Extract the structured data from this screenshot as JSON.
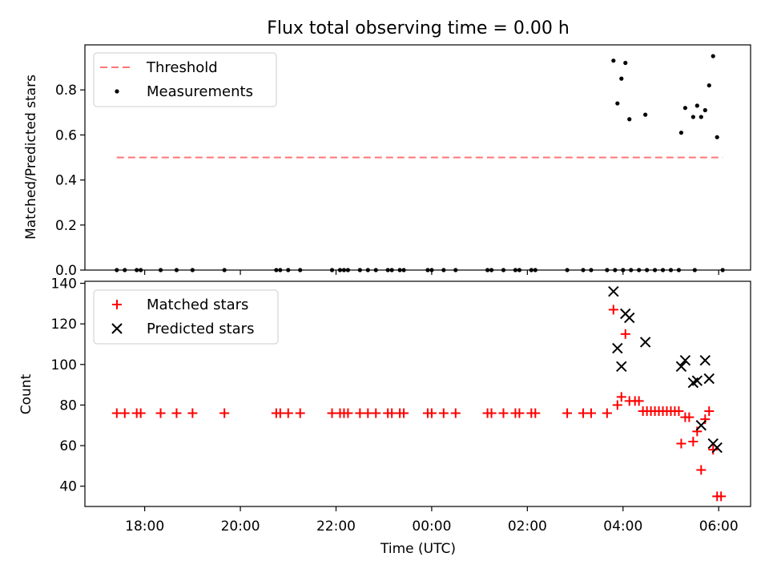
{
  "title": "Flux total observing time = 0.00 h",
  "chart_data": [
    {
      "type": "scatter",
      "ylabel": "Matched/Predicted stars",
      "ylim": [
        0,
        1.0
      ],
      "yticks": [
        "0.0",
        "0.2",
        "0.4",
        "0.6",
        "0.8"
      ],
      "ytick_values": [
        0,
        0.2,
        0.4,
        0.6,
        0.8
      ],
      "grid": false,
      "legend": {
        "placement": "top-left",
        "entries": [
          "Threshold",
          "Measurements"
        ]
      },
      "threshold": {
        "name": "Threshold",
        "x_start": "17:25",
        "x_end": "06:05",
        "y": 0.5,
        "color": "#ff7575",
        "style": "dashed"
      },
      "measurements": {
        "name": "Measurements",
        "color": "#000000",
        "points": [
          [
            "17:25",
            0
          ],
          [
            "17:35",
            0
          ],
          [
            "17:50",
            0
          ],
          [
            "17:55",
            0
          ],
          [
            "18:20",
            0
          ],
          [
            "18:40",
            0
          ],
          [
            "19:00",
            0
          ],
          [
            "19:40",
            0
          ],
          [
            "20:45",
            0
          ],
          [
            "20:50",
            0
          ],
          [
            "21:00",
            0
          ],
          [
            "21:15",
            0
          ],
          [
            "21:55",
            0
          ],
          [
            "22:05",
            0
          ],
          [
            "22:10",
            0
          ],
          [
            "22:15",
            0
          ],
          [
            "22:30",
            0
          ],
          [
            "22:40",
            0
          ],
          [
            "22:50",
            0
          ],
          [
            "23:05",
            0
          ],
          [
            "23:10",
            0
          ],
          [
            "23:20",
            0
          ],
          [
            "23:25",
            0
          ],
          [
            "23:55",
            0
          ],
          [
            "00:00",
            0
          ],
          [
            "00:15",
            0
          ],
          [
            "00:30",
            0
          ],
          [
            "01:10",
            0
          ],
          [
            "01:15",
            0
          ],
          [
            "01:30",
            0
          ],
          [
            "01:45",
            0
          ],
          [
            "01:50",
            0
          ],
          [
            "02:05",
            0
          ],
          [
            "02:10",
            0
          ],
          [
            "02:50",
            0
          ],
          [
            "03:10",
            0
          ],
          [
            "03:20",
            0
          ],
          [
            "03:40",
            0
          ],
          [
            "03:50",
            0
          ],
          [
            "04:00",
            0
          ],
          [
            "04:10",
            0
          ],
          [
            "04:20",
            0
          ],
          [
            "04:30",
            0
          ],
          [
            "04:40",
            0
          ],
          [
            "04:50",
            0
          ],
          [
            "05:00",
            0
          ],
          [
            "05:10",
            0
          ],
          [
            "05:30",
            0
          ],
          [
            "06:05",
            0
          ],
          [
            "03:48",
            0.93
          ],
          [
            "03:53",
            0.74
          ],
          [
            "03:58",
            0.85
          ],
          [
            "04:03",
            0.92
          ],
          [
            "04:08",
            0.67
          ],
          [
            "04:28",
            0.69
          ],
          [
            "05:13",
            0.61
          ],
          [
            "05:18",
            0.72
          ],
          [
            "05:28",
            0.68
          ],
          [
            "05:33",
            0.73
          ],
          [
            "05:38",
            0.68
          ],
          [
            "05:43",
            0.71
          ],
          [
            "05:48",
            0.82
          ],
          [
            "05:53",
            0.95
          ],
          [
            "05:58",
            0.59
          ]
        ]
      }
    },
    {
      "type": "scatter",
      "xlabel": "Time (UTC)",
      "ylabel": "Count",
      "ylim": [
        30,
        141
      ],
      "yticks": [
        "40",
        "60",
        "80",
        "100",
        "120",
        "140"
      ],
      "ytick_values": [
        40,
        60,
        80,
        100,
        120,
        140
      ],
      "xticks": [
        "18:00",
        "20:00",
        "22:00",
        "00:00",
        "02:00",
        "04:00",
        "06:00"
      ],
      "xtick_values": [
        "18:00",
        "20:00",
        "22:00",
        "00:00",
        "02:00",
        "04:00",
        "06:00"
      ],
      "xlim": [
        "16:45",
        "06:40"
      ],
      "grid": false,
      "legend": {
        "placement": "top-left",
        "entries": [
          "Matched stars",
          "Predicted stars"
        ]
      },
      "series": [
        {
          "name": "Matched stars",
          "marker": "plus",
          "color": "#ff0000",
          "points": [
            [
              "17:25",
              76
            ],
            [
              "17:35",
              76
            ],
            [
              "17:50",
              76
            ],
            [
              "17:55",
              76
            ],
            [
              "18:20",
              76
            ],
            [
              "18:40",
              76
            ],
            [
              "19:00",
              76
            ],
            [
              "19:40",
              76
            ],
            [
              "20:45",
              76
            ],
            [
              "20:50",
              76
            ],
            [
              "21:00",
              76
            ],
            [
              "21:15",
              76
            ],
            [
              "21:55",
              76
            ],
            [
              "22:05",
              76
            ],
            [
              "22:10",
              76
            ],
            [
              "22:15",
              76
            ],
            [
              "22:30",
              76
            ],
            [
              "22:40",
              76
            ],
            [
              "22:50",
              76
            ],
            [
              "23:05",
              76
            ],
            [
              "23:10",
              76
            ],
            [
              "23:20",
              76
            ],
            [
              "23:25",
              76
            ],
            [
              "23:55",
              76
            ],
            [
              "00:00",
              76
            ],
            [
              "00:15",
              76
            ],
            [
              "00:30",
              76
            ],
            [
              "01:10",
              76
            ],
            [
              "01:15",
              76
            ],
            [
              "01:30",
              76
            ],
            [
              "01:45",
              76
            ],
            [
              "01:50",
              76
            ],
            [
              "02:05",
              76
            ],
            [
              "02:10",
              76
            ],
            [
              "02:50",
              76
            ],
            [
              "03:10",
              76
            ],
            [
              "03:20",
              76
            ],
            [
              "03:40",
              76
            ],
            [
              "03:48",
              127
            ],
            [
              "03:53",
              80
            ],
            [
              "03:58",
              84
            ],
            [
              "04:03",
              115
            ],
            [
              "04:08",
              82
            ],
            [
              "04:15",
              82
            ],
            [
              "04:20",
              82
            ],
            [
              "04:25",
              77
            ],
            [
              "04:30",
              77
            ],
            [
              "04:35",
              77
            ],
            [
              "04:40",
              77
            ],
            [
              "04:45",
              77
            ],
            [
              "04:50",
              77
            ],
            [
              "04:55",
              77
            ],
            [
              "05:00",
              77
            ],
            [
              "05:05",
              77
            ],
            [
              "05:10",
              77
            ],
            [
              "05:13",
              61
            ],
            [
              "05:18",
              74
            ],
            [
              "05:23",
              74
            ],
            [
              "05:28",
              62
            ],
            [
              "05:33",
              67
            ],
            [
              "05:38",
              48
            ],
            [
              "05:43",
              73
            ],
            [
              "05:48",
              77
            ],
            [
              "05:53",
              58
            ],
            [
              "05:58",
              35
            ],
            [
              "06:03",
              35
            ]
          ]
        },
        {
          "name": "Predicted stars",
          "marker": "x",
          "color": "#000000",
          "points": [
            [
              "03:48",
              136
            ],
            [
              "03:53",
              108
            ],
            [
              "03:58",
              99
            ],
            [
              "04:03",
              125
            ],
            [
              "04:08",
              123
            ],
            [
              "04:28",
              111
            ],
            [
              "05:13",
              99
            ],
            [
              "05:18",
              102
            ],
            [
              "05:28",
              91
            ],
            [
              "05:33",
              92
            ],
            [
              "05:38",
              70
            ],
            [
              "05:43",
              102
            ],
            [
              "05:48",
              93
            ],
            [
              "05:53",
              61
            ],
            [
              "05:58",
              59
            ]
          ]
        }
      ]
    }
  ]
}
